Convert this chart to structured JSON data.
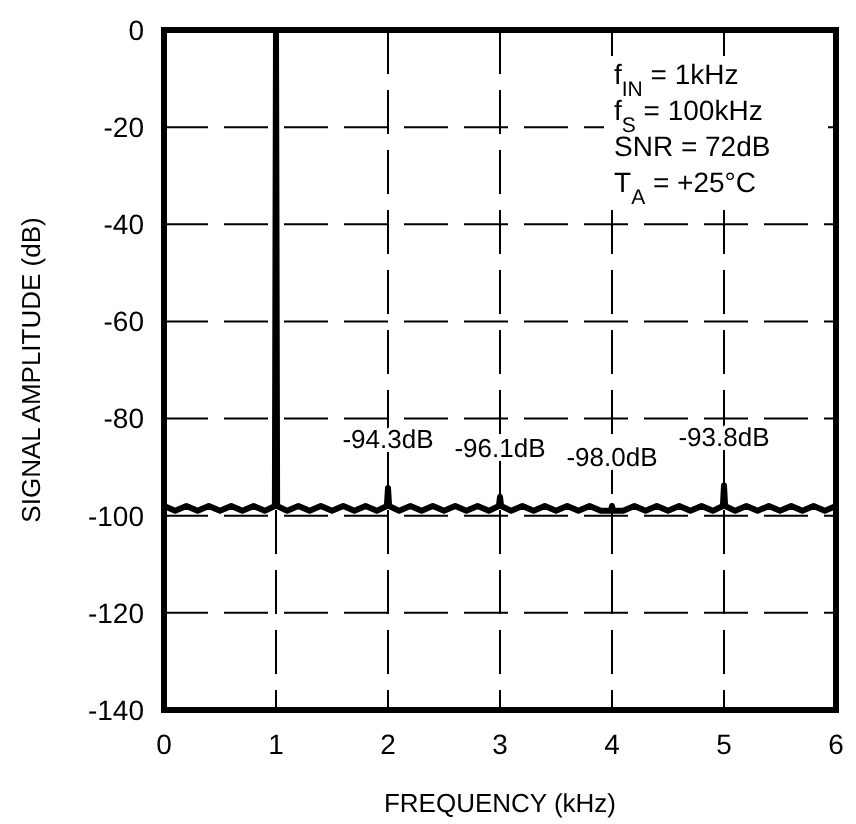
{
  "chart_data": {
    "type": "line",
    "xlabel": "FREQUENCY (kHz)",
    "ylabel": "SIGNAL AMPLITUDE (dB)",
    "xlim": [
      0,
      6
    ],
    "ylim": [
      -140,
      0
    ],
    "xticks": [
      0,
      1,
      2,
      3,
      4,
      5,
      6
    ],
    "yticks": [
      0,
      -20,
      -40,
      -60,
      -80,
      -100,
      -120,
      -140
    ],
    "grid": true,
    "line_style": "solid",
    "series": [
      {
        "color": "#000000",
        "x": [
          0,
          0.1,
          0.2,
          0.3,
          0.4,
          0.5,
          0.6,
          0.7,
          0.8,
          0.9,
          0.99,
          1,
          1.01,
          1.1,
          1.2,
          1.3,
          1.4,
          1.5,
          1.6,
          1.7,
          1.8,
          1.9,
          1.99,
          2,
          2.01,
          2.1,
          2.2,
          2.3,
          2.4,
          2.5,
          2.6,
          2.7,
          2.8,
          2.9,
          2.99,
          3,
          3.01,
          3.1,
          3.2,
          3.3,
          3.4,
          3.5,
          3.6,
          3.7,
          3.8,
          3.9,
          3.99,
          4,
          4.01,
          4.1,
          4.2,
          4.3,
          4.4,
          4.5,
          4.6,
          4.7,
          4.8,
          4.9,
          4.99,
          5,
          5.01,
          5.1,
          5.2,
          5.3,
          5.4,
          5.5,
          5.6,
          5.7,
          5.8,
          5.9,
          6
        ],
        "values": [
          -98,
          -99,
          -98,
          -99,
          -98,
          -99,
          -98,
          -99,
          -98,
          -99,
          -98,
          0,
          -98,
          -99,
          -98,
          -99,
          -98,
          -99,
          -98,
          -99,
          -98,
          -99,
          -98,
          -94.3,
          -98,
          -99,
          -98,
          -99,
          -98,
          -99,
          -98,
          -99,
          -98,
          -99,
          -98,
          -96.1,
          -98,
          -99,
          -98,
          -99,
          -98,
          -99,
          -98,
          -99,
          -98,
          -99,
          -99,
          -98.0,
          -99,
          -99,
          -98,
          -99,
          -98,
          -99,
          -98,
          -99,
          -98,
          -99,
          -98,
          -93.8,
          -98,
          -99,
          -98,
          -99,
          -98,
          -99,
          -98,
          -99,
          -98,
          -99,
          -98
        ]
      }
    ],
    "annotations": [
      "f$_{IN}$ = 1kHz",
      "f$_{S}$ = 100kHz",
      "SNR = 72dB",
      "T$_{A}$ = +25°C",
      {
        "text": "-94.3dB",
        "x": 2,
        "y": -94.3
      },
      {
        "text": "-96.1dB",
        "x": 3,
        "y": -96.1
      },
      {
        "text": "-98.0dB",
        "x": 4,
        "y": -98.0
      },
      {
        "text": "-93.8dB",
        "x": 5,
        "y": -93.8
      }
    ]
  }
}
